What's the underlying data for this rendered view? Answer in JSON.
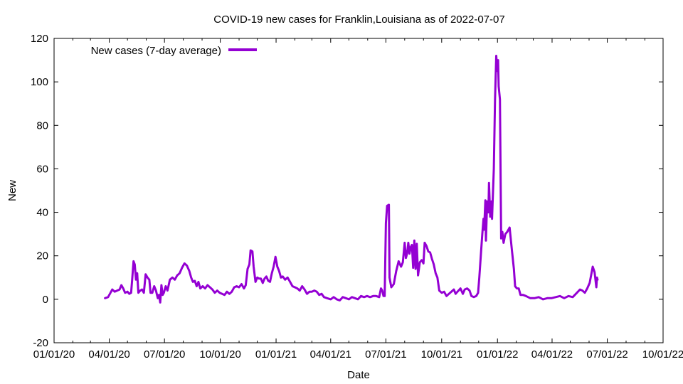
{
  "chart_data": {
    "type": "line",
    "title": "COVID-19 new cases for Franklin,Louisiana as of 2022-07-07",
    "xlabel": "Date",
    "ylabel": "New",
    "xlim": [
      "2020-01-01",
      "2022-10-01"
    ],
    "ylim": [
      -20,
      120
    ],
    "x_ticks": [
      "01/01/20",
      "04/01/20",
      "07/01/20",
      "10/01/20",
      "01/01/21",
      "04/01/21",
      "07/01/21",
      "10/01/21",
      "01/01/22",
      "04/01/22",
      "07/01/22",
      "10/01/22"
    ],
    "y_ticks": [
      -20,
      0,
      20,
      40,
      60,
      80,
      100,
      120
    ],
    "grid": false,
    "legend_position": "top-left",
    "series": [
      {
        "name": "New cases (7-day average)",
        "color": "#9400d3",
        "points": [
          [
            "2020-03-25",
            0.5
          ],
          [
            "2020-03-30",
            1
          ],
          [
            "2020-04-03",
            3
          ],
          [
            "2020-04-06",
            4.5
          ],
          [
            "2020-04-10",
            3.5
          ],
          [
            "2020-04-14",
            4
          ],
          [
            "2020-04-18",
            4.5
          ],
          [
            "2020-04-21",
            6.5
          ],
          [
            "2020-04-24",
            5
          ],
          [
            "2020-04-27",
            3
          ],
          [
            "2020-05-01",
            3.5
          ],
          [
            "2020-05-04",
            2.5
          ],
          [
            "2020-05-07",
            3
          ],
          [
            "2020-05-09",
            10
          ],
          [
            "2020-05-11",
            17.5
          ],
          [
            "2020-05-13",
            16
          ],
          [
            "2020-05-15",
            9
          ],
          [
            "2020-05-17",
            12
          ],
          [
            "2020-05-19",
            3
          ],
          [
            "2020-05-22",
            4
          ],
          [
            "2020-05-25",
            4.5
          ],
          [
            "2020-05-28",
            3
          ],
          [
            "2020-05-31",
            11.5
          ],
          [
            "2020-06-03",
            10
          ],
          [
            "2020-06-06",
            9
          ],
          [
            "2020-06-08",
            3
          ],
          [
            "2020-06-11",
            3
          ],
          [
            "2020-06-14",
            6
          ],
          [
            "2020-06-17",
            4
          ],
          [
            "2020-06-20",
            0.5
          ],
          [
            "2020-06-22",
            2
          ],
          [
            "2020-06-24",
            -1.5
          ],
          [
            "2020-06-26",
            6.5
          ],
          [
            "2020-06-28",
            2
          ],
          [
            "2020-06-30",
            3
          ],
          [
            "2020-07-03",
            6
          ],
          [
            "2020-07-06",
            4
          ],
          [
            "2020-07-10",
            9
          ],
          [
            "2020-07-14",
            10
          ],
          [
            "2020-07-18",
            9
          ],
          [
            "2020-07-22",
            11
          ],
          [
            "2020-07-26",
            12
          ],
          [
            "2020-07-30",
            14.5
          ],
          [
            "2020-08-03",
            16.5
          ],
          [
            "2020-08-07",
            15.5
          ],
          [
            "2020-08-11",
            13
          ],
          [
            "2020-08-14",
            10
          ],
          [
            "2020-08-17",
            8
          ],
          [
            "2020-08-20",
            8.5
          ],
          [
            "2020-08-23",
            6
          ],
          [
            "2020-08-26",
            8
          ],
          [
            "2020-08-29",
            5
          ],
          [
            "2020-09-02",
            6
          ],
          [
            "2020-09-06",
            5
          ],
          [
            "2020-09-10",
            6.5
          ],
          [
            "2020-09-14",
            5.5
          ],
          [
            "2020-09-18",
            4.5
          ],
          [
            "2020-09-22",
            3
          ],
          [
            "2020-09-26",
            4
          ],
          [
            "2020-09-30",
            3
          ],
          [
            "2020-10-04",
            2.5
          ],
          [
            "2020-10-08",
            2
          ],
          [
            "2020-10-12",
            3.5
          ],
          [
            "2020-10-16",
            2.5
          ],
          [
            "2020-10-20",
            3.5
          ],
          [
            "2020-10-24",
            5.5
          ],
          [
            "2020-10-28",
            6
          ],
          [
            "2020-11-01",
            5.5
          ],
          [
            "2020-11-05",
            7
          ],
          [
            "2020-11-09",
            5
          ],
          [
            "2020-11-12",
            6.5
          ],
          [
            "2020-11-15",
            14
          ],
          [
            "2020-11-18",
            16
          ],
          [
            "2020-11-20",
            22.5
          ],
          [
            "2020-11-23",
            22
          ],
          [
            "2020-11-25",
            15
          ],
          [
            "2020-11-28",
            8
          ],
          [
            "2020-12-01",
            10
          ],
          [
            "2020-12-04",
            9.5
          ],
          [
            "2020-12-07",
            9.5
          ],
          [
            "2020-12-10",
            7.5
          ],
          [
            "2020-12-13",
            9.5
          ],
          [
            "2020-12-16",
            10.5
          ],
          [
            "2020-12-19",
            8.5
          ],
          [
            "2020-12-22",
            8
          ],
          [
            "2020-12-25",
            12
          ],
          [
            "2020-12-28",
            15
          ],
          [
            "2020-12-31",
            19.5
          ],
          [
            "2021-01-03",
            15
          ],
          [
            "2021-01-06",
            13
          ],
          [
            "2021-01-09",
            10
          ],
          [
            "2021-01-12",
            10.5
          ],
          [
            "2021-01-16",
            9
          ],
          [
            "2021-01-20",
            10
          ],
          [
            "2021-01-24",
            8
          ],
          [
            "2021-01-28",
            6
          ],
          [
            "2021-02-01",
            5.5
          ],
          [
            "2021-02-05",
            5
          ],
          [
            "2021-02-09",
            4
          ],
          [
            "2021-02-13",
            6
          ],
          [
            "2021-02-17",
            4.5
          ],
          [
            "2021-02-21",
            2.5
          ],
          [
            "2021-02-25",
            3.5
          ],
          [
            "2021-03-01",
            3.5
          ],
          [
            "2021-03-05",
            4
          ],
          [
            "2021-03-09",
            3.5
          ],
          [
            "2021-03-13",
            2
          ],
          [
            "2021-03-17",
            2.5
          ],
          [
            "2021-03-21",
            1
          ],
          [
            "2021-03-26",
            0.5
          ],
          [
            "2021-04-01",
            0
          ],
          [
            "2021-04-06",
            1
          ],
          [
            "2021-04-11",
            0
          ],
          [
            "2021-04-16",
            -0.5
          ],
          [
            "2021-04-21",
            1
          ],
          [
            "2021-04-26",
            0.5
          ],
          [
            "2021-05-01",
            0
          ],
          [
            "2021-05-06",
            1
          ],
          [
            "2021-05-11",
            0.5
          ],
          [
            "2021-05-16",
            0
          ],
          [
            "2021-05-21",
            1.5
          ],
          [
            "2021-05-26",
            1
          ],
          [
            "2021-05-31",
            1.5
          ],
          [
            "2021-06-05",
            1
          ],
          [
            "2021-06-10",
            1.5
          ],
          [
            "2021-06-15",
            1.5
          ],
          [
            "2021-06-20",
            1
          ],
          [
            "2021-06-23",
            5
          ],
          [
            "2021-06-25",
            4
          ],
          [
            "2021-06-27",
            1.5
          ],
          [
            "2021-06-29",
            1.5
          ],
          [
            "2021-07-01",
            35
          ],
          [
            "2021-07-03",
            43
          ],
          [
            "2021-07-06",
            43.5
          ],
          [
            "2021-07-07",
            10
          ],
          [
            "2021-07-10",
            5.5
          ],
          [
            "2021-07-14",
            7
          ],
          [
            "2021-07-18",
            13
          ],
          [
            "2021-07-22",
            17.5
          ],
          [
            "2021-07-26",
            15
          ],
          [
            "2021-07-29",
            17
          ],
          [
            "2021-08-01",
            26
          ],
          [
            "2021-08-03",
            19
          ],
          [
            "2021-08-05",
            21
          ],
          [
            "2021-08-07",
            26
          ],
          [
            "2021-08-09",
            21
          ],
          [
            "2021-08-11",
            24
          ],
          [
            "2021-08-13",
            25
          ],
          [
            "2021-08-15",
            14.5
          ],
          [
            "2021-08-17",
            27
          ],
          [
            "2021-08-19",
            14
          ],
          [
            "2021-08-21",
            25.5
          ],
          [
            "2021-08-23",
            11
          ],
          [
            "2021-08-26",
            17
          ],
          [
            "2021-08-29",
            18
          ],
          [
            "2021-09-01",
            16.5
          ],
          [
            "2021-09-03",
            26
          ],
          [
            "2021-09-06",
            24.5
          ],
          [
            "2021-09-09",
            22
          ],
          [
            "2021-09-12",
            21.5
          ],
          [
            "2021-09-15",
            18.5
          ],
          [
            "2021-09-18",
            16
          ],
          [
            "2021-09-21",
            12
          ],
          [
            "2021-09-24",
            10
          ],
          [
            "2021-09-27",
            4
          ],
          [
            "2021-10-01",
            3
          ],
          [
            "2021-10-05",
            3.5
          ],
          [
            "2021-10-09",
            1.5
          ],
          [
            "2021-10-13",
            2.5
          ],
          [
            "2021-10-17",
            3.5
          ],
          [
            "2021-10-21",
            4.5
          ],
          [
            "2021-10-24",
            2.5
          ],
          [
            "2021-10-27",
            3.5
          ],
          [
            "2021-11-01",
            5
          ],
          [
            "2021-11-05",
            2.5
          ],
          [
            "2021-11-08",
            4.5
          ],
          [
            "2021-11-12",
            5
          ],
          [
            "2021-11-16",
            4
          ],
          [
            "2021-11-19",
            1.5
          ],
          [
            "2021-11-23",
            1
          ],
          [
            "2021-11-27",
            1.5
          ],
          [
            "2021-11-30",
            3
          ],
          [
            "2021-12-02",
            10
          ],
          [
            "2021-12-05",
            22
          ],
          [
            "2021-12-07",
            30
          ],
          [
            "2021-12-09",
            37
          ],
          [
            "2021-12-10",
            32
          ],
          [
            "2021-12-12",
            45.5
          ],
          [
            "2021-12-13",
            27
          ],
          [
            "2021-12-15",
            45
          ],
          [
            "2021-12-17",
            40
          ],
          [
            "2021-12-18",
            53.5
          ],
          [
            "2021-12-20",
            38
          ],
          [
            "2021-12-22",
            45
          ],
          [
            "2021-12-23",
            37
          ],
          [
            "2021-12-26",
            60
          ],
          [
            "2021-12-28",
            92
          ],
          [
            "2021-12-30",
            112
          ],
          [
            "2022-01-01",
            105
          ],
          [
            "2022-01-02",
            110
          ],
          [
            "2022-01-03",
            98
          ],
          [
            "2022-01-05",
            92
          ],
          [
            "2022-01-07",
            28
          ],
          [
            "2022-01-09",
            31
          ],
          [
            "2022-01-11",
            26
          ],
          [
            "2022-01-14",
            30
          ],
          [
            "2022-01-17",
            31
          ],
          [
            "2022-01-21",
            33
          ],
          [
            "2022-01-25",
            22
          ],
          [
            "2022-01-28",
            14
          ],
          [
            "2022-01-30",
            6
          ],
          [
            "2022-02-02",
            5
          ],
          [
            "2022-02-05",
            5
          ],
          [
            "2022-02-08",
            2
          ],
          [
            "2022-02-12",
            2
          ],
          [
            "2022-02-17",
            1.5
          ],
          [
            "2022-02-24",
            0.5
          ],
          [
            "2022-03-03",
            0.5
          ],
          [
            "2022-03-10",
            1
          ],
          [
            "2022-03-17",
            0
          ],
          [
            "2022-03-24",
            0.5
          ],
          [
            "2022-03-31",
            0.5
          ],
          [
            "2022-04-07",
            1
          ],
          [
            "2022-04-14",
            1.5
          ],
          [
            "2022-04-21",
            0.5
          ],
          [
            "2022-04-28",
            1.5
          ],
          [
            "2022-05-05",
            1
          ],
          [
            "2022-05-12",
            3
          ],
          [
            "2022-05-17",
            4.5
          ],
          [
            "2022-05-21",
            4
          ],
          [
            "2022-05-25",
            3
          ],
          [
            "2022-05-29",
            5
          ],
          [
            "2022-06-02",
            7.5
          ],
          [
            "2022-06-05",
            12
          ],
          [
            "2022-06-07",
            15
          ],
          [
            "2022-06-10",
            12.5
          ],
          [
            "2022-06-13",
            5.5
          ],
          [
            "2022-06-14",
            10
          ],
          [
            "2022-06-15",
            9
          ]
        ]
      }
    ]
  }
}
